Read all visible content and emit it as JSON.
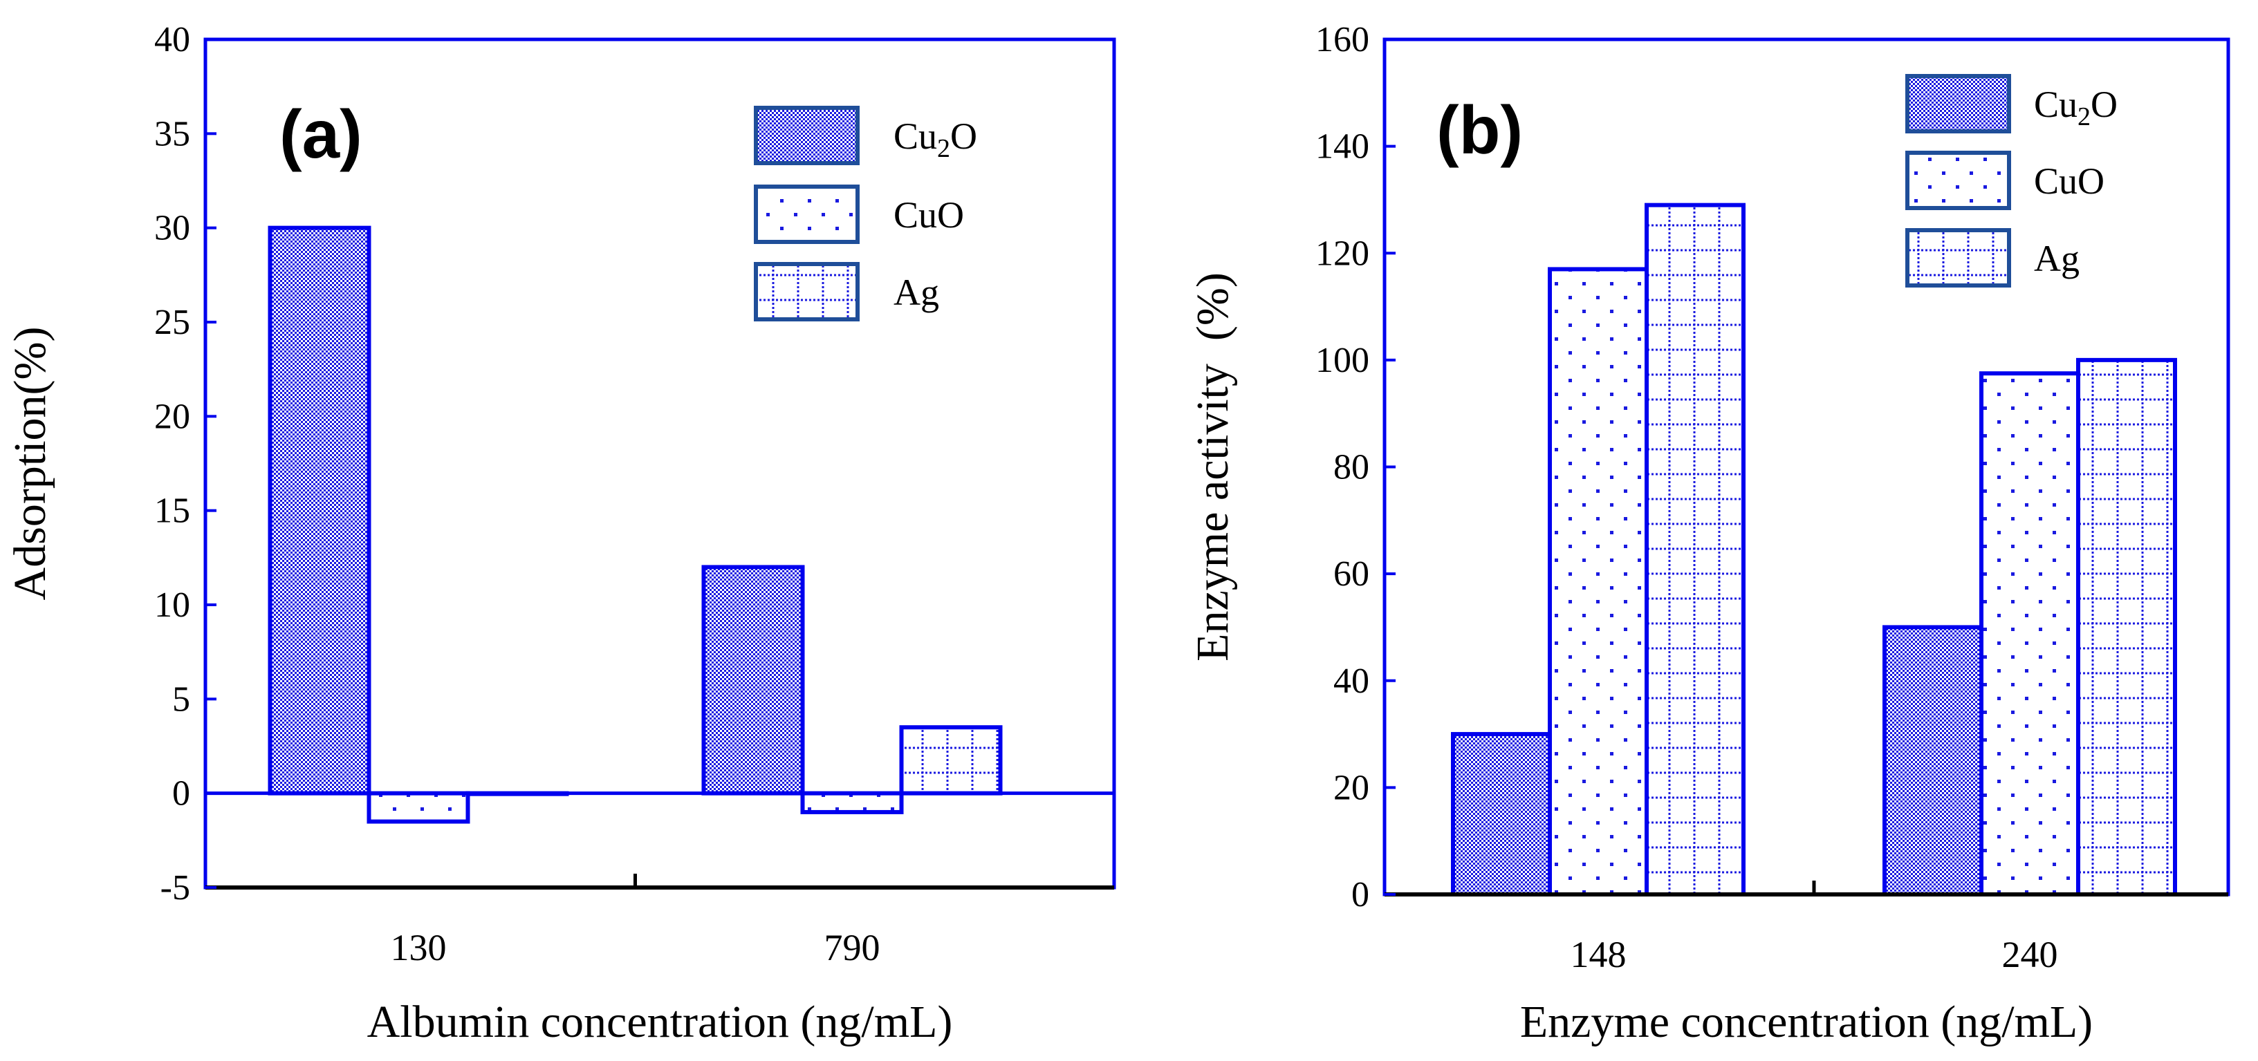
{
  "colors": {
    "bar_stroke": "#0000ee",
    "pattern_fill": "#1a1ae0",
    "legend_stroke": "#1f4e99",
    "axis": "#000000"
  },
  "patterns": {
    "Cu2O": "checker",
    "CuO": "dots",
    "Ag": "grid"
  },
  "chart_data": [
    {
      "type": "bar",
      "panel_label": "(a)",
      "categories": [
        "130",
        "790"
      ],
      "series": [
        {
          "name": "Cu2O",
          "legend_base": "Cu",
          "legend_sub": "2",
          "legend_tail": "O",
          "values": [
            30,
            12
          ]
        },
        {
          "name": "CuO",
          "legend_base": "CuO",
          "legend_sub": "",
          "legend_tail": "",
          "values": [
            -1.5,
            -1
          ]
        },
        {
          "name": "Ag",
          "legend_base": "Ag",
          "legend_sub": "",
          "legend_tail": "",
          "values": [
            0,
            3.5
          ]
        }
      ],
      "title": "",
      "xlabel": "Albumin concentration (ng/mL)",
      "ylabel": "Adsorption(%)",
      "ylim": [
        -5,
        40
      ],
      "yticks": [
        -5,
        0,
        5,
        10,
        15,
        20,
        25,
        30,
        35,
        40
      ],
      "grid": false,
      "legend_position": "top-right"
    },
    {
      "type": "bar",
      "panel_label": "(b)",
      "categories": [
        "148",
        "240"
      ],
      "series": [
        {
          "name": "Cu2O",
          "legend_base": "Cu",
          "legend_sub": "2",
          "legend_tail": "O",
          "values": [
            30,
            50
          ]
        },
        {
          "name": "CuO",
          "legend_base": "CuO",
          "legend_sub": "",
          "legend_tail": "",
          "values": [
            117,
            97.5
          ]
        },
        {
          "name": "Ag",
          "legend_base": "Ag",
          "legend_sub": "",
          "legend_tail": "",
          "values": [
            129,
            100
          ]
        }
      ],
      "title": "",
      "xlabel": "Enzyme concentration (ng/mL)",
      "ylabel": "Enzyme activity  (%)",
      "ylim": [
        0,
        160
      ],
      "yticks": [
        0,
        20,
        40,
        60,
        80,
        100,
        120,
        140,
        160
      ],
      "grid": false,
      "legend_position": "top-right"
    }
  ]
}
